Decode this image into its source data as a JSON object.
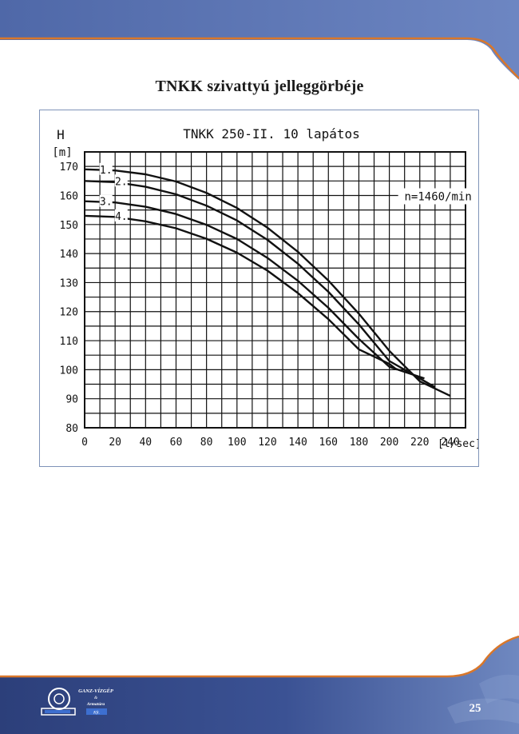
{
  "page": {
    "title": "TNKK szivattyú jelleggörbéje",
    "page_number": "25",
    "logo_text": [
      "GANZ-VÍZGÉP",
      "&",
      "Armatúra",
      "Kft."
    ]
  },
  "colors": {
    "band_blue": "#5b73b0",
    "band_dark": "#2c3f7a",
    "accent_orange": "#d9772a",
    "curve": "#111111",
    "frame_border": "#7f93b8"
  },
  "chart_data": {
    "type": "line",
    "title": "TNKK 250-II. 10 lapátos",
    "ylabel": "H",
    "yunit": "[m]",
    "xunit": "[l/sec]",
    "annotation": "n=1460/min",
    "xlim": [
      0,
      250
    ],
    "ylim": [
      80,
      175
    ],
    "x_ticks": [
      0,
      20,
      40,
      60,
      80,
      100,
      120,
      140,
      160,
      180,
      200,
      220,
      240
    ],
    "y_ticks": [
      80,
      90,
      100,
      110,
      120,
      130,
      140,
      150,
      160,
      170
    ],
    "grid": true,
    "series": [
      {
        "name": "1.",
        "x": [
          0,
          20,
          40,
          60,
          80,
          100,
          120,
          140,
          160,
          180,
          200,
          220,
          240
        ],
        "y": [
          169,
          168.6,
          167.3,
          164.8,
          160.9,
          155.7,
          148.9,
          140.6,
          130.7,
          119.3,
          106.5,
          96,
          91
        ]
      },
      {
        "name": "2.",
        "x": [
          0,
          20,
          40,
          60,
          80,
          100,
          120,
          140,
          160,
          180,
          200,
          220,
          230
        ],
        "y": [
          165,
          164.6,
          163,
          160.4,
          156.5,
          151.4,
          144.7,
          136.5,
          126.8,
          115.6,
          103,
          97,
          94
        ]
      },
      {
        "name": "3.",
        "x": [
          0,
          20,
          40,
          60,
          80,
          100,
          120,
          140,
          160,
          180,
          200,
          220,
          223
        ],
        "y": [
          158,
          157.6,
          156.1,
          153.6,
          149.9,
          145,
          138.5,
          130.6,
          121.3,
          110.6,
          101,
          97.5,
          97
        ]
      },
      {
        "name": "4.",
        "x": [
          0,
          20,
          40,
          60,
          80,
          100,
          120,
          140,
          160,
          180,
          200,
          205
        ],
        "y": [
          153,
          152.6,
          151.1,
          148.7,
          145.1,
          140.3,
          134.1,
          126.4,
          117.4,
          107,
          102,
          100
        ]
      }
    ]
  }
}
